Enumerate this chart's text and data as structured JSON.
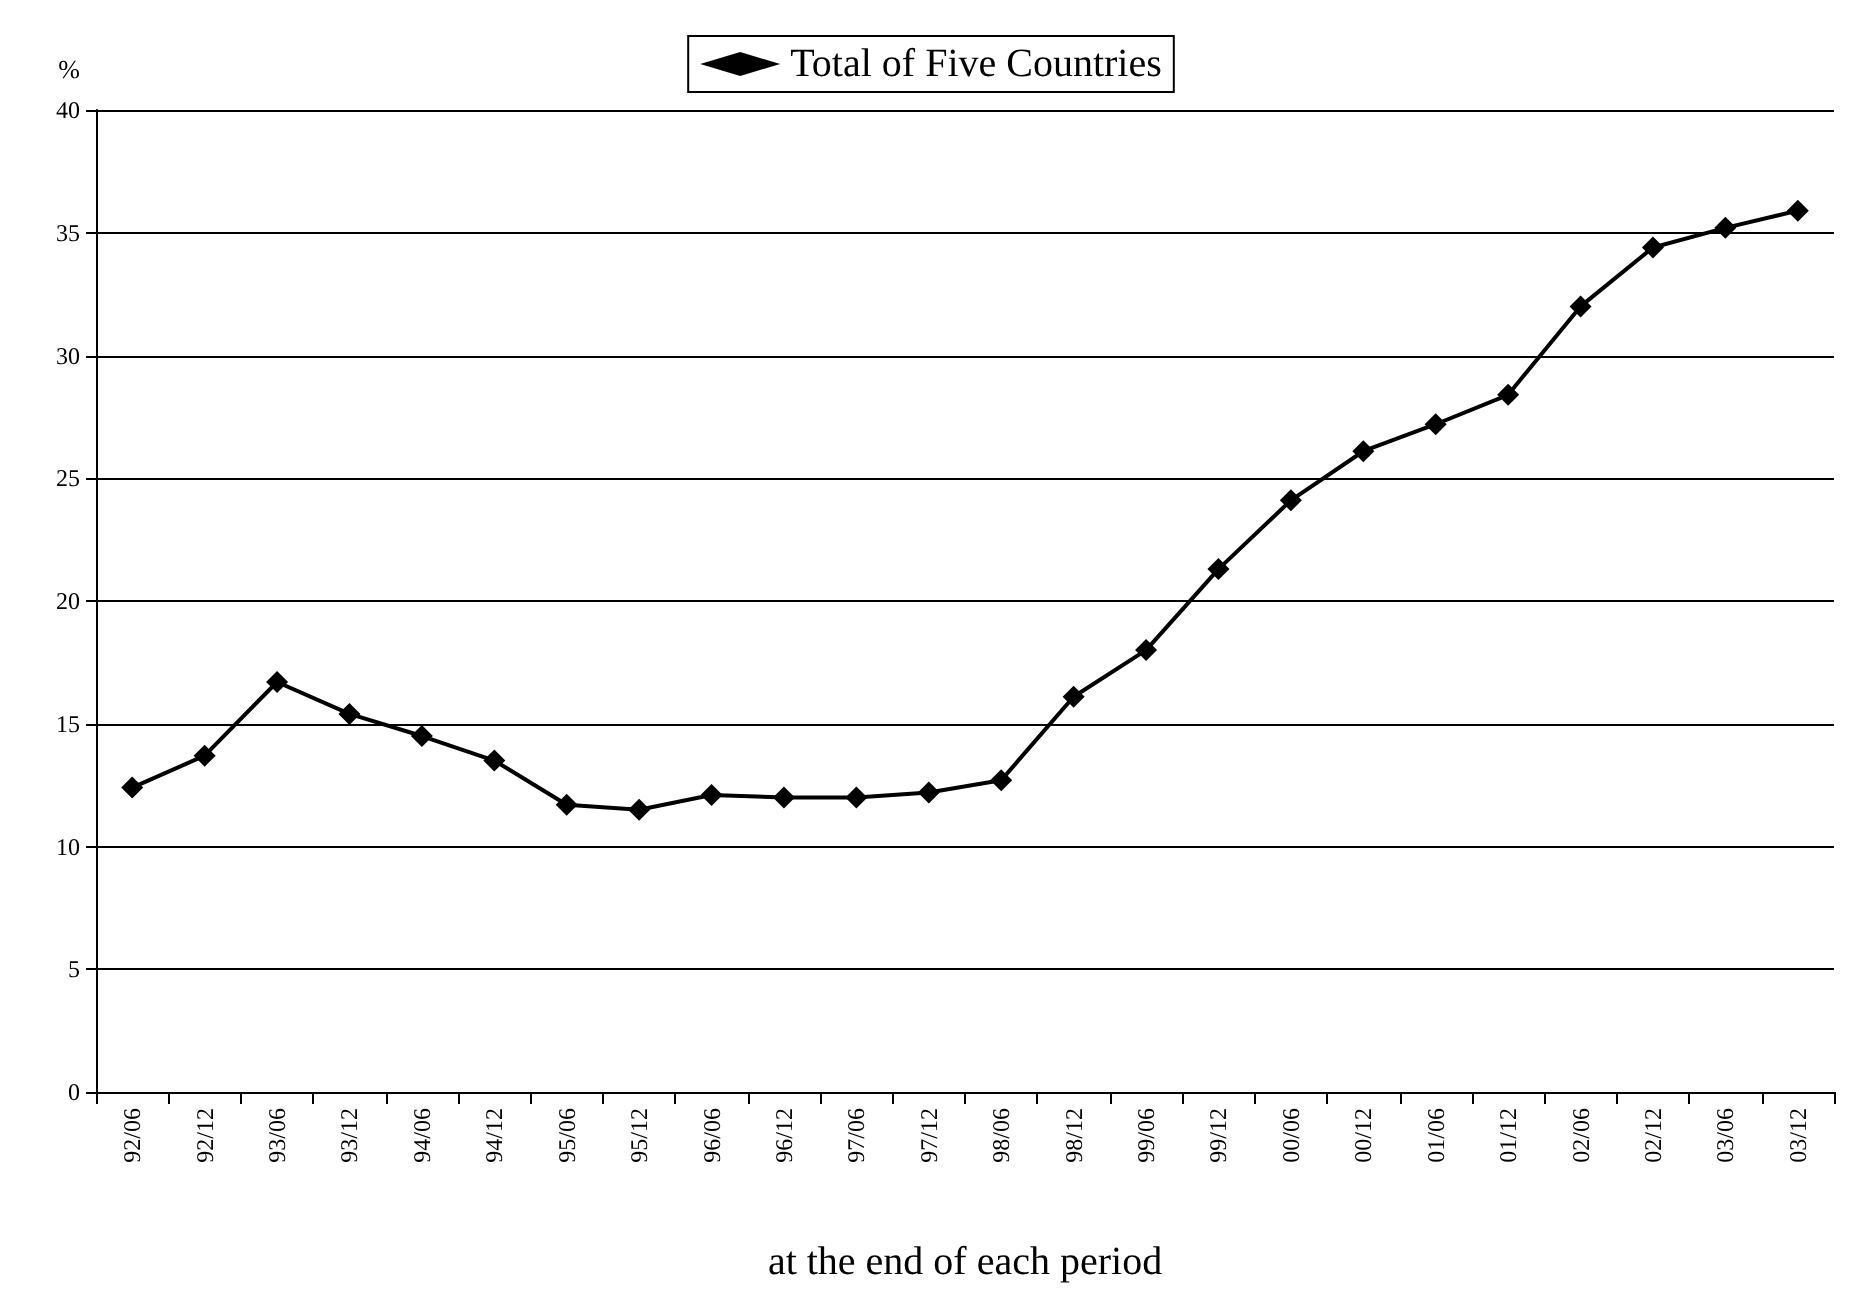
{
  "chart_data": {
    "type": "line",
    "xlabel": "at the end of each period",
    "ylabel": "%",
    "categories": [
      "92/06",
      "92/12",
      "93/06",
      "93/12",
      "94/06",
      "94/12",
      "95/06",
      "95/12",
      "96/06",
      "96/12",
      "97/06",
      "97/12",
      "98/06",
      "98/12",
      "99/06",
      "99/12",
      "00/06",
      "00/12",
      "01/06",
      "01/12",
      "02/06",
      "02/12",
      "03/06",
      "03/12"
    ],
    "series": [
      {
        "name": "Total of Five Countries",
        "color": "#000000",
        "values": [
          12.4,
          13.7,
          16.7,
          15.4,
          14.5,
          13.5,
          11.7,
          11.5,
          12.1,
          12.0,
          12.0,
          12.2,
          12.7,
          16.1,
          18.0,
          21.3,
          24.1,
          26.1,
          27.2,
          28.4,
          32.0,
          34.4,
          35.2,
          35.9
        ]
      }
    ],
    "ylim": [
      0,
      40
    ],
    "yticks": [
      0,
      5,
      10,
      15,
      20,
      25,
      30,
      35,
      40
    ],
    "grid": "y",
    "legend": "top",
    "marker": "diamond",
    "line_style": "solid"
  }
}
